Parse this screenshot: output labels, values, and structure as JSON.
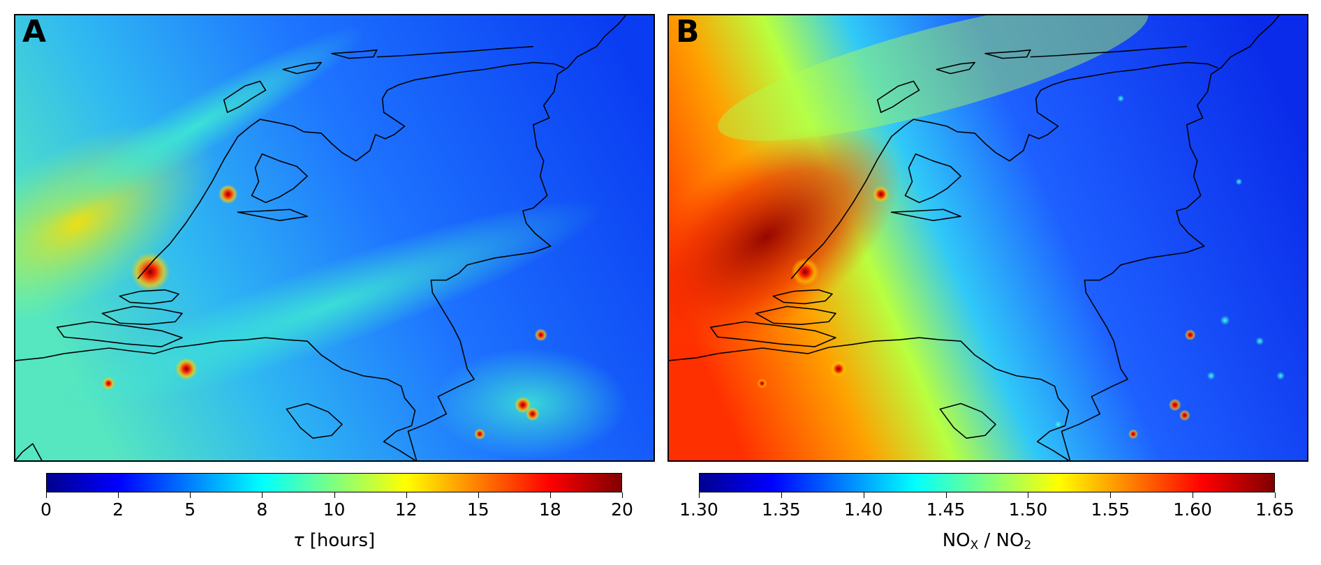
{
  "panels": [
    {
      "letter": "A",
      "colorbar": {
        "ticks": [
          "0",
          "2",
          "5",
          "8",
          "10",
          "12",
          "15",
          "18",
          "20"
        ],
        "label_symbol": "τ",
        "label_unit": " [hours]"
      }
    },
    {
      "letter": "B",
      "colorbar": {
        "ticks": [
          "1.30",
          "1.35",
          "1.40",
          "1.45",
          "1.50",
          "1.55",
          "1.60",
          "1.65"
        ],
        "label_num": "NO",
        "label_num_sub": "X",
        "label_sep": " / NO",
        "label_den_sub": "2"
      }
    }
  ],
  "colormap": "jet",
  "colors": {
    "low": "#00008f",
    "blue": "#0030ff",
    "mid": "#33ccee",
    "high": "#ffee00",
    "hot": "#ee1000",
    "max": "#800000"
  }
}
